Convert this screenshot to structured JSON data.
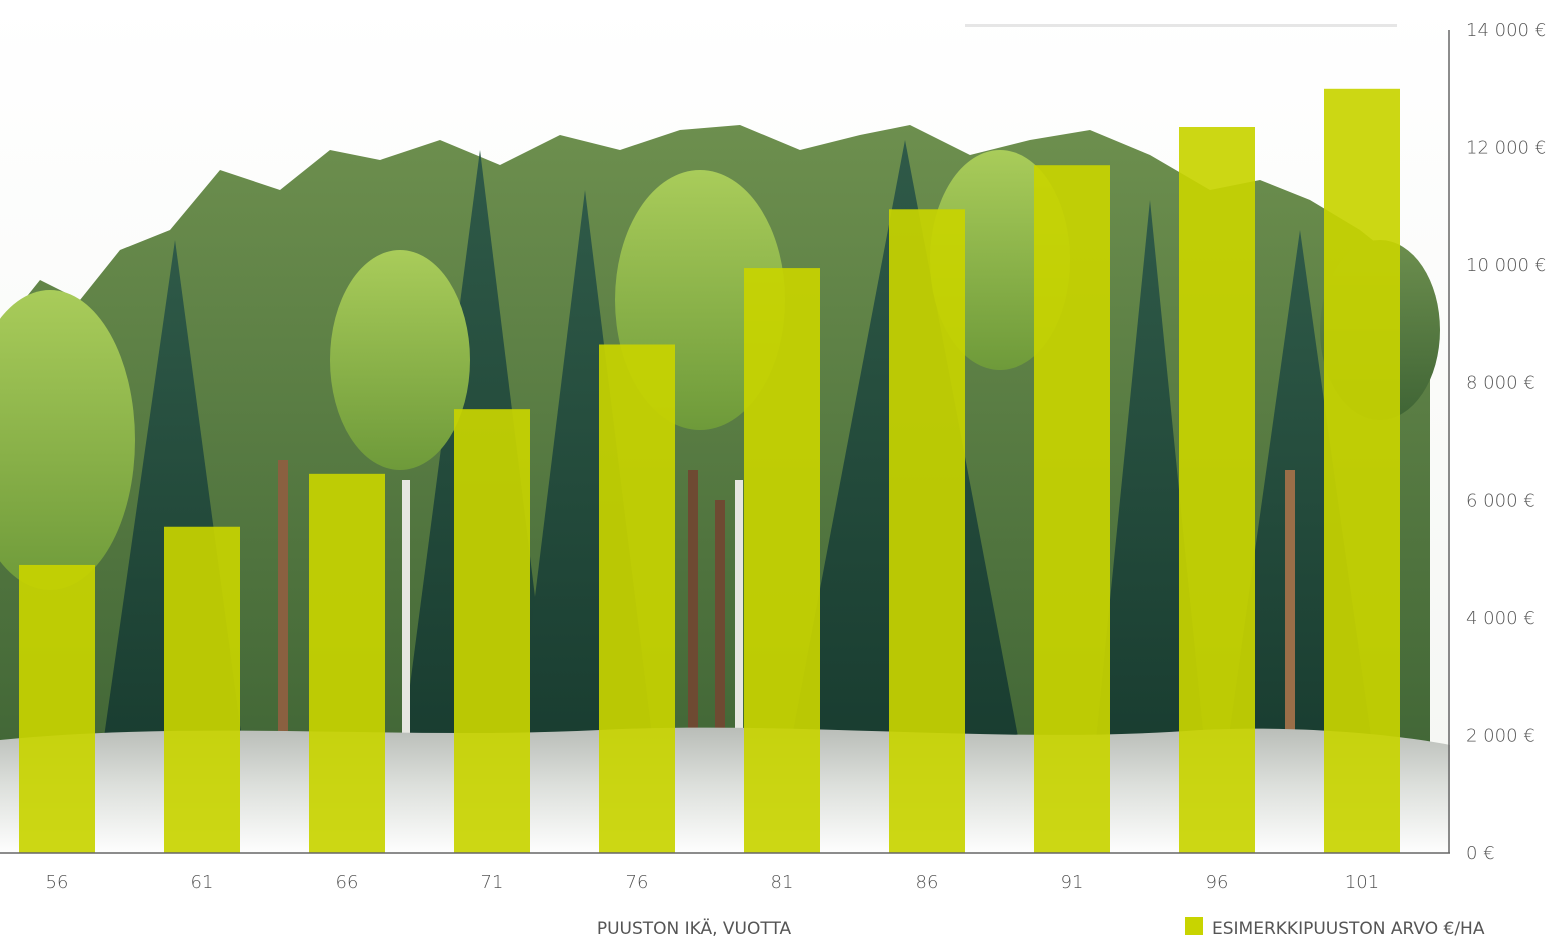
{
  "chart_data": {
    "type": "bar",
    "title": "",
    "xlabel": "PUUSTON IKÄ, VUOTTA",
    "ylabel": "",
    "categories": [
      "56",
      "61",
      "66",
      "71",
      "76",
      "81",
      "86",
      "91",
      "96",
      "101"
    ],
    "series": [
      {
        "name": "ESIMERKKIPUUSTON ARVO €/HA",
        "values": [
          4900,
          5550,
          6450,
          7550,
          8650,
          9950,
          10950,
          11700,
          12350,
          13000
        ],
        "color": "#c8d400"
      }
    ],
    "ylim": [
      0,
      14000
    ],
    "yticks": [
      0,
      2000,
      4000,
      6000,
      8000,
      10000,
      12000,
      14000
    ],
    "ytick_labels": [
      "0 €",
      "2 000 €",
      "4 000 €",
      "6 000 €",
      "8 000 €",
      "10 000 €",
      "12 000 €",
      "14 000 €"
    ],
    "grid": false,
    "legend_position": "bottom-right",
    "background": "forest-illustration"
  }
}
